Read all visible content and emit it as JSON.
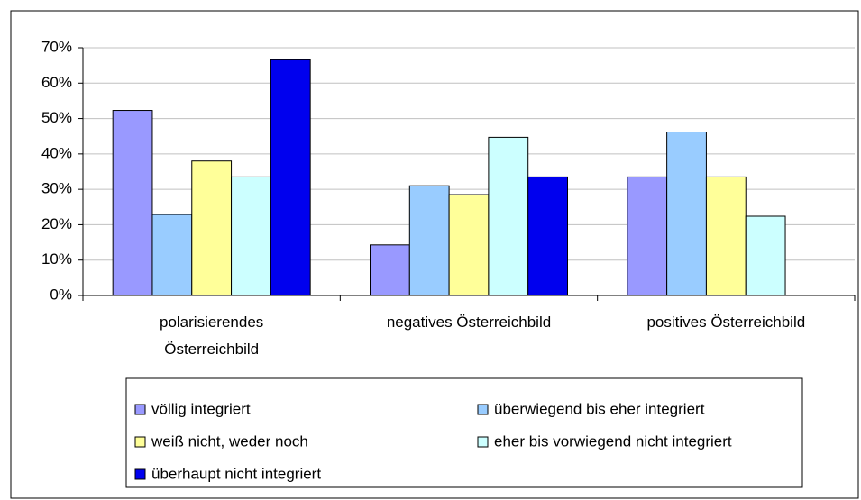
{
  "chart_data": {
    "type": "bar",
    "categories": [
      "polarisierendes Österreichbild",
      "negatives Österreichbild",
      "positives Österreichbild"
    ],
    "series": [
      {
        "name": "völlig integriert",
        "color": "#9999ff",
        "values": [
          52.3,
          14.3,
          33.5
        ]
      },
      {
        "name": "überwiegend bis eher integriert",
        "color": "#99ccff",
        "values": [
          22.9,
          31,
          46.2
        ]
      },
      {
        "name": "weiß nicht, weder noch",
        "color": "#ffff99",
        "values": [
          38,
          28.5,
          33.5
        ]
      },
      {
        "name": "eher bis vorwiegend nicht integriert",
        "color": "#ccffff",
        "values": [
          33.5,
          44.7,
          22.4
        ]
      },
      {
        "name": "überhaupt nicht integriert",
        "color": "#0000ee",
        "values": [
          66.6,
          33.5,
          null
        ]
      }
    ],
    "ylim": [
      0,
      70
    ],
    "yticks": [
      {
        "value": 0,
        "label": "0%"
      },
      {
        "value": 10,
        "label": "10%"
      },
      {
        "value": 20,
        "label": "20%"
      },
      {
        "value": 30,
        "label": "30%"
      },
      {
        "value": 40,
        "label": "40%"
      },
      {
        "value": 50,
        "label": "50%"
      },
      {
        "value": 60,
        "label": "60%"
      },
      {
        "value": 70,
        "label": "70%"
      }
    ],
    "grid": true,
    "legend": "bottom"
  }
}
